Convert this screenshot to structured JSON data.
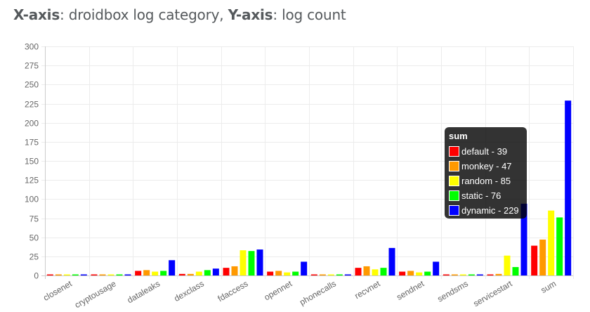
{
  "caption": {
    "x_bold": "X-axis",
    "x_text": ": droidbox log category, ",
    "y_bold": "Y-axis",
    "y_text": ": log count"
  },
  "colors": {
    "default": "#ff0000",
    "monkey": "#ff9900",
    "random": "#ffff00",
    "static": "#00ff00",
    "dynamic": "#0000ff"
  },
  "chart_data": {
    "type": "bar",
    "categories": [
      "closenet",
      "cryptousage",
      "dataleaks",
      "dexclass",
      "fdaccess",
      "opennet",
      "phonecalls",
      "recvnet",
      "sendnet",
      "sendsms",
      "servicestart",
      "sum"
    ],
    "series": [
      {
        "name": "default",
        "color": "#ff0000",
        "values": [
          1,
          1,
          6,
          2,
          10,
          5,
          1,
          10,
          5,
          1,
          1,
          39
        ]
      },
      {
        "name": "monkey",
        "color": "#ff9900",
        "values": [
          1,
          1,
          7,
          2,
          12,
          6,
          1,
          12,
          6,
          1,
          2,
          47
        ]
      },
      {
        "name": "random",
        "color": "#ffff00",
        "values": [
          1,
          1,
          5,
          5,
          33,
          4,
          1,
          8,
          4,
          1,
          26,
          85
        ]
      },
      {
        "name": "static",
        "color": "#00ff00",
        "values": [
          1,
          1,
          6,
          7,
          32,
          5,
          1,
          10,
          5,
          1,
          11,
          76
        ]
      },
      {
        "name": "dynamic",
        "color": "#0000ff",
        "values": [
          1,
          1,
          20,
          9,
          34,
          18,
          1,
          36,
          18,
          1,
          94,
          229
        ]
      }
    ],
    "ylim": [
      0,
      300
    ],
    "yticks": [
      0,
      25,
      50,
      75,
      100,
      125,
      150,
      175,
      200,
      225,
      250,
      275,
      300
    ],
    "grid": true,
    "xlabel": "droidbox log category",
    "ylabel": "log count"
  },
  "tooltip": {
    "title": "sum",
    "rows": [
      {
        "label": "default - 39",
        "color": "#ff0000"
      },
      {
        "label": "monkey - 47",
        "color": "#ff9900"
      },
      {
        "label": "random - 85",
        "color": "#ffff00"
      },
      {
        "label": "static - 76",
        "color": "#00ff00"
      },
      {
        "label": "dynamic - 229",
        "color": "#0000ff"
      }
    ]
  }
}
